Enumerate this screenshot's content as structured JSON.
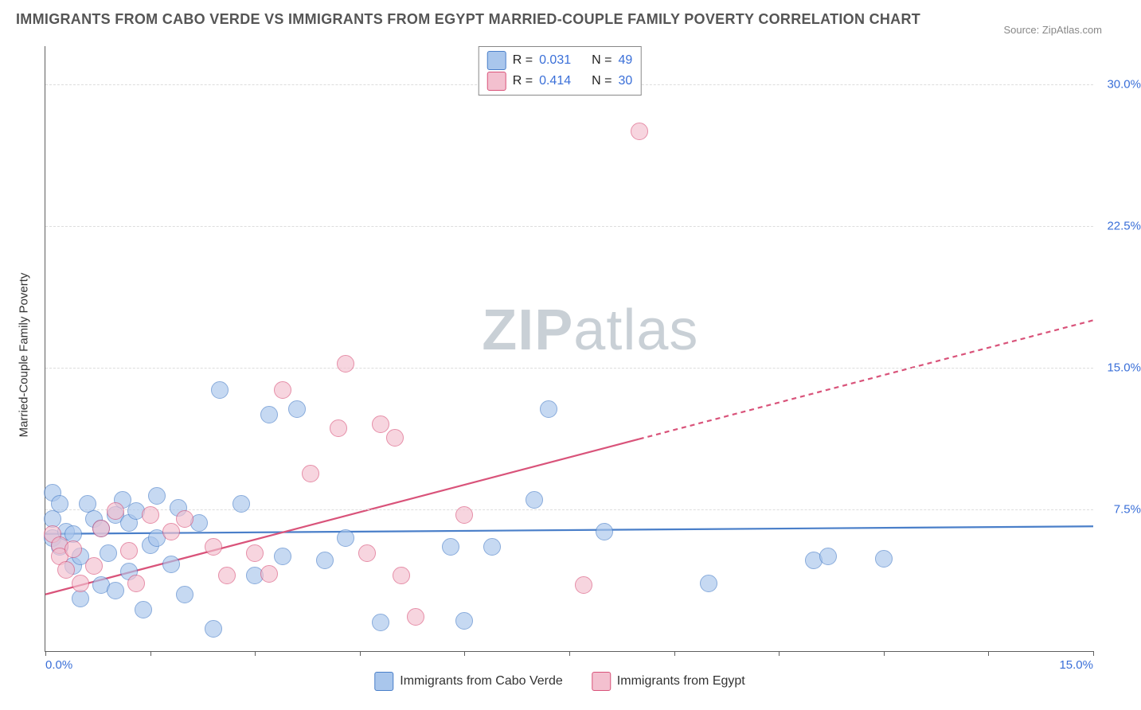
{
  "title": "IMMIGRANTS FROM CABO VERDE VS IMMIGRANTS FROM EGYPT MARRIED-COUPLE FAMILY POVERTY CORRELATION CHART",
  "source": "Source: ZipAtlas.com",
  "watermark_bold": "ZIP",
  "watermark_rest": "atlas",
  "chart": {
    "type": "scatter",
    "background_color": "#ffffff",
    "grid_color": "#dddddd",
    "axis_color": "#606060",
    "label_color": "#333333",
    "tick_label_color": "#3a6fd8",
    "title_fontsize": 18,
    "tick_fontsize": 15,
    "y_axis_label": "Married-Couple Family Poverty",
    "xlim": [
      0.0,
      15.0
    ],
    "ylim": [
      0.0,
      32.0
    ],
    "x_ticks": [
      0.0,
      1.5,
      3.0,
      4.5,
      6.0,
      7.5,
      9.0,
      10.5,
      12.0,
      13.5,
      15.0
    ],
    "x_tick_labels": {
      "0": "0.0%",
      "15": "15.0%"
    },
    "y_grid": [
      7.5,
      15.0,
      22.5,
      30.0
    ],
    "y_tick_labels": {
      "7.5": "7.5%",
      "15": "15.0%",
      "22.5": "22.5%",
      "30": "30.0%"
    },
    "point_radius": 10,
    "point_opacity": 0.65,
    "series": [
      {
        "name": "Immigrants from Cabo Verde",
        "fill_color": "#a9c6ec",
        "stroke_color": "#4a7fc9",
        "r_value": "0.031",
        "n_value": "49",
        "trend": {
          "x1": 0.0,
          "y1": 6.2,
          "x2": 15.0,
          "y2": 6.6,
          "stroke_width": 2.2,
          "dash": "none",
          "dash_after_x": null
        },
        "points": [
          [
            0.1,
            6.0
          ],
          [
            0.1,
            7.0
          ],
          [
            0.1,
            8.4
          ],
          [
            0.2,
            5.5
          ],
          [
            0.2,
            7.8
          ],
          [
            0.3,
            6.3
          ],
          [
            0.4,
            4.5
          ],
          [
            0.4,
            6.2
          ],
          [
            0.5,
            2.8
          ],
          [
            0.5,
            5.0
          ],
          [
            0.6,
            7.8
          ],
          [
            0.7,
            7.0
          ],
          [
            0.8,
            3.5
          ],
          [
            0.8,
            6.5
          ],
          [
            0.9,
            5.2
          ],
          [
            1.0,
            7.2
          ],
          [
            1.0,
            3.2
          ],
          [
            1.1,
            8.0
          ],
          [
            1.2,
            6.8
          ],
          [
            1.2,
            4.2
          ],
          [
            1.3,
            7.4
          ],
          [
            1.4,
            2.2
          ],
          [
            1.5,
            5.6
          ],
          [
            1.6,
            8.2
          ],
          [
            1.6,
            6.0
          ],
          [
            1.8,
            4.6
          ],
          [
            1.9,
            7.6
          ],
          [
            2.0,
            3.0
          ],
          [
            2.2,
            6.8
          ],
          [
            2.4,
            1.2
          ],
          [
            2.5,
            13.8
          ],
          [
            2.8,
            7.8
          ],
          [
            3.0,
            4.0
          ],
          [
            3.2,
            12.5
          ],
          [
            3.4,
            5.0
          ],
          [
            3.6,
            12.8
          ],
          [
            4.0,
            4.8
          ],
          [
            4.3,
            6.0
          ],
          [
            5.8,
            5.5
          ],
          [
            6.0,
            1.6
          ],
          [
            6.4,
            5.5
          ],
          [
            7.0,
            8.0
          ],
          [
            7.2,
            12.8
          ],
          [
            8.0,
            6.3
          ],
          [
            9.5,
            3.6
          ],
          [
            11.0,
            4.8
          ],
          [
            11.2,
            5.0
          ],
          [
            12.0,
            4.9
          ],
          [
            4.8,
            1.5
          ]
        ]
      },
      {
        "name": "Immigrants from Egypt",
        "fill_color": "#f3c0cf",
        "stroke_color": "#d9537a",
        "r_value": "0.414",
        "n_value": "30",
        "trend": {
          "x1": 0.0,
          "y1": 3.0,
          "x2": 15.0,
          "y2": 17.5,
          "stroke_width": 2.2,
          "dash": "6 5",
          "dash_after_x": 8.5
        },
        "points": [
          [
            0.1,
            6.2
          ],
          [
            0.2,
            5.6
          ],
          [
            0.2,
            5.0
          ],
          [
            0.3,
            4.3
          ],
          [
            0.4,
            5.4
          ],
          [
            0.5,
            3.6
          ],
          [
            0.7,
            4.5
          ],
          [
            0.8,
            6.5
          ],
          [
            1.0,
            7.4
          ],
          [
            1.2,
            5.3
          ],
          [
            1.3,
            3.6
          ],
          [
            1.5,
            7.2
          ],
          [
            1.8,
            6.3
          ],
          [
            2.0,
            7.0
          ],
          [
            2.4,
            5.5
          ],
          [
            2.6,
            4.0
          ],
          [
            3.0,
            5.2
          ],
          [
            3.2,
            4.1
          ],
          [
            3.4,
            13.8
          ],
          [
            3.8,
            9.4
          ],
          [
            4.2,
            11.8
          ],
          [
            4.3,
            15.2
          ],
          [
            4.6,
            5.2
          ],
          [
            4.8,
            12.0
          ],
          [
            5.0,
            11.3
          ],
          [
            5.1,
            4.0
          ],
          [
            5.3,
            1.8
          ],
          [
            6.0,
            7.2
          ],
          [
            7.7,
            3.5
          ],
          [
            8.5,
            27.5
          ]
        ]
      }
    ]
  },
  "legend_top": {
    "r_label": "R =",
    "n_label": "N ="
  },
  "legend_bottom_series_labels": [
    "Immigrants from Cabo Verde",
    "Immigrants from Egypt"
  ]
}
